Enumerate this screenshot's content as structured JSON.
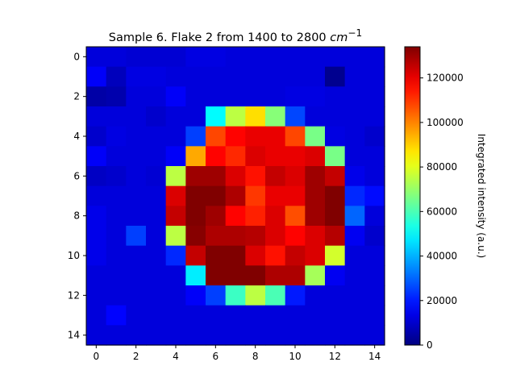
{
  "chart_data": {
    "type": "heatmap",
    "title": "Sample 6. Flake 2 from 1400 to 2800",
    "title_unit": "cm",
    "title_unit_sup": "−1",
    "colormap": "jet",
    "colorbar_label": "Integrated intensity (a.u.)",
    "vmin": 0,
    "vmax": 134000,
    "colorbar_ticks": [
      "0",
      "20000",
      "40000",
      "60000",
      "80000",
      "100000",
      "120000"
    ],
    "colorbar_tick_values": [
      0,
      20000,
      40000,
      60000,
      80000,
      100000,
      120000
    ],
    "x_ticks": [
      "0",
      "2",
      "4",
      "6",
      "8",
      "10",
      "12",
      "14"
    ],
    "y_ticks": [
      "0",
      "2",
      "4",
      "6",
      "8",
      "10",
      "12",
      "14"
    ],
    "rows": 15,
    "cols": 15,
    "values": [
      [
        12000,
        12000,
        11000,
        11000,
        11000,
        13000,
        13000,
        12000,
        12000,
        12000,
        12000,
        12000,
        12000,
        12000,
        12000
      ],
      [
        16000,
        8000,
        13000,
        13000,
        12000,
        12000,
        12000,
        12000,
        12000,
        12000,
        12000,
        12000,
        2000,
        12000,
        12000
      ],
      [
        5000,
        6000,
        12000,
        12000,
        16000,
        12000,
        12000,
        12000,
        12000,
        12000,
        13000,
        13000,
        12000,
        12000,
        12000
      ],
      [
        12000,
        12000,
        12000,
        10000,
        12000,
        12000,
        50000,
        75000,
        88000,
        68000,
        26000,
        12000,
        12000,
        12000,
        12000
      ],
      [
        10000,
        13000,
        12000,
        12000,
        12000,
        25000,
        108000,
        117000,
        120000,
        120000,
        108000,
        66000,
        13000,
        12000,
        10000
      ],
      [
        16000,
        12000,
        12000,
        12000,
        16000,
        95000,
        117000,
        112000,
        122000,
        120000,
        120000,
        122000,
        66000,
        12000,
        12000
      ],
      [
        9000,
        10000,
        12000,
        11000,
        75000,
        130000,
        130000,
        122000,
        115000,
        125000,
        122000,
        130000,
        125000,
        14000,
        12000
      ],
      [
        12000,
        12000,
        12000,
        12000,
        122000,
        147000,
        142000,
        128000,
        110000,
        120000,
        120000,
        130000,
        140000,
        22000,
        18000
      ],
      [
        14000,
        12000,
        12000,
        12000,
        125000,
        137000,
        130000,
        117000,
        113000,
        122000,
        107000,
        130000,
        147000,
        30000,
        12000
      ],
      [
        14000,
        12000,
        25000,
        12000,
        75000,
        133000,
        128000,
        128000,
        127000,
        122000,
        117000,
        122000,
        127000,
        15000,
        10000
      ],
      [
        14000,
        12000,
        12000,
        12000,
        22000,
        125000,
        137000,
        137000,
        122000,
        115000,
        125000,
        122000,
        78000,
        12000,
        12000
      ],
      [
        12000,
        12000,
        12000,
        12000,
        12000,
        48000,
        135000,
        140000,
        145000,
        128000,
        128000,
        72000,
        15000,
        12000,
        12000
      ],
      [
        12000,
        12000,
        12000,
        12000,
        12000,
        16000,
        25000,
        58000,
        75000,
        60000,
        20000,
        12000,
        12000,
        12000,
        12000
      ],
      [
        12000,
        17000,
        12000,
        12000,
        12000,
        12000,
        12000,
        12000,
        12000,
        12000,
        12000,
        12000,
        12000,
        12000,
        12000
      ],
      [
        12000,
        12000,
        12000,
        12000,
        12000,
        12000,
        12000,
        12000,
        12000,
        12000,
        12000,
        12000,
        12000,
        12000,
        12000
      ]
    ]
  }
}
